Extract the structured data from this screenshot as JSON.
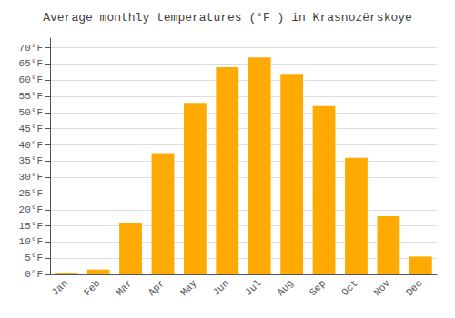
{
  "chart_data": {
    "type": "bar",
    "title": "Average monthly temperatures (°F ) in Krasnozërskoye",
    "categories": [
      "Jan",
      "Feb",
      "Mar",
      "Apr",
      "May",
      "Jun",
      "Jul",
      "Aug",
      "Sep",
      "Oct",
      "Nov",
      "Dec"
    ],
    "values": [
      0.5,
      1.5,
      16,
      37.5,
      53,
      64,
      67,
      62,
      52,
      36,
      18,
      5.5
    ],
    "color": "#FFAA00",
    "ylim": [
      0,
      73
    ],
    "yticks": [
      {
        "value": 0,
        "label": "0°F"
      },
      {
        "value": 5,
        "label": "5°F"
      },
      {
        "value": 10,
        "label": "10°F"
      },
      {
        "value": 15,
        "label": "15°F"
      },
      {
        "value": 20,
        "label": "20°F"
      },
      {
        "value": 25,
        "label": "25°F"
      },
      {
        "value": 30,
        "label": "30°F"
      },
      {
        "value": 35,
        "label": "35°F"
      },
      {
        "value": 40,
        "label": "40°F"
      },
      {
        "value": 45,
        "label": "45°F"
      },
      {
        "value": 50,
        "label": "50°F"
      },
      {
        "value": 55,
        "label": "55°F"
      },
      {
        "value": 60,
        "label": "60°F"
      },
      {
        "value": 65,
        "label": "65°F"
      },
      {
        "value": 70,
        "label": "70°F"
      }
    ],
    "grid": true
  }
}
